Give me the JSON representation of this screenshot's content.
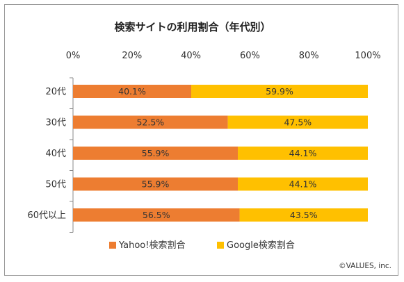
{
  "chart_data": {
    "type": "bar",
    "orientation": "horizontal",
    "stacked": "percent",
    "title": "検索サイトの利用割合（年代別）",
    "categories": [
      "20代",
      "30代",
      "40代",
      "50代",
      "60代以上"
    ],
    "series": [
      {
        "name": "Yahoo!検索割合",
        "color": "#ED7D31",
        "values": [
          40.1,
          52.5,
          55.9,
          55.9,
          56.5
        ]
      },
      {
        "name": "Google検索割合",
        "color": "#FFC000",
        "values": [
          59.9,
          47.5,
          44.1,
          44.1,
          43.5
        ]
      }
    ],
    "xlim": [
      0,
      100
    ],
    "xticks": [
      0,
      20,
      40,
      60,
      80,
      100
    ],
    "tick_suffix": "%",
    "data_label_suffix": "%",
    "grid": false,
    "legend_position": "bottom",
    "credit": "©VALUES, inc."
  }
}
